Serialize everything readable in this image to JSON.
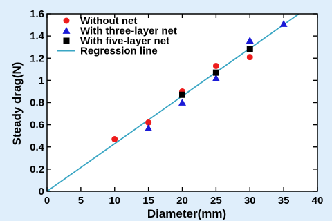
{
  "chart_data": {
    "type": "scatter",
    "title": "",
    "xlabel": "Diameter(mm)",
    "ylabel": "Steady drag(N)",
    "xlim": [
      0,
      40
    ],
    "ylim": [
      0,
      1.6
    ],
    "xticks": [
      0,
      5,
      10,
      15,
      20,
      25,
      30,
      35,
      40
    ],
    "yticks": [
      0,
      0.2,
      0.4,
      0.6,
      0.8,
      1,
      1.2,
      1.4,
      1.6
    ],
    "grid": false,
    "legend_position": "top-left",
    "series": [
      {
        "name": "Without net",
        "marker": "circle",
        "color": "#ee1c1c",
        "x": [
          10,
          15,
          20,
          25,
          30
        ],
        "y": [
          0.47,
          0.62,
          0.9,
          1.13,
          1.21
        ]
      },
      {
        "name": "With three-layer net",
        "marker": "triangle",
        "color": "#1a1ad6",
        "x": [
          15,
          20,
          25,
          30,
          35
        ],
        "y": [
          0.57,
          0.8,
          1.02,
          1.36,
          1.51
        ]
      },
      {
        "name": "With five-layer net",
        "marker": "square",
        "color": "#000000",
        "x": [
          20,
          25,
          30
        ],
        "y": [
          0.87,
          1.07,
          1.28
        ]
      }
    ],
    "regression": {
      "name": "Regression line",
      "color": "#3aa6c4",
      "x": [
        0,
        37.5
      ],
      "y": [
        0,
        1.61
      ]
    }
  }
}
